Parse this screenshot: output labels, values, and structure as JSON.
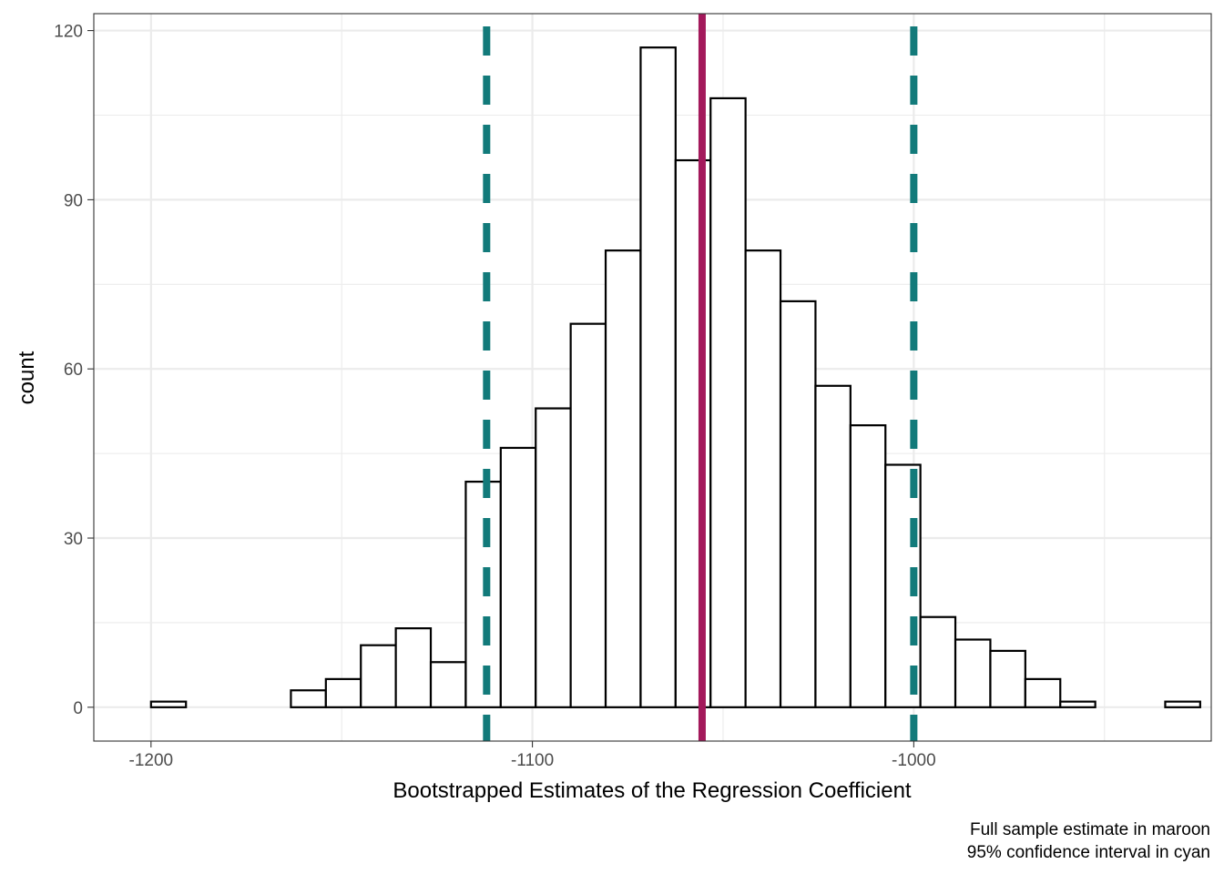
{
  "chart_data": {
    "type": "bar",
    "subtype": "histogram",
    "xlabel": "Bootstrapped Estimates of the Regression Coefficient",
    "ylabel": "count",
    "xlim": [
      -1215,
      -922
    ],
    "ylim": [
      -6,
      123
    ],
    "x_ticks": [
      -1200,
      -1100,
      -1000
    ],
    "x_tick_labels": [
      "-1200",
      "-1100",
      "-1000"
    ],
    "y_ticks": [
      0,
      30,
      60,
      90,
      120
    ],
    "y_tick_labels": [
      "0",
      "30",
      "60",
      "90",
      "120"
    ],
    "x_minor_gridlines": [
      -1150,
      -1050,
      -950
    ],
    "y_minor_gridlines": [
      15,
      45,
      75,
      105
    ],
    "bin_width": 9.17,
    "bins": [
      {
        "x0": -1200.0,
        "count": 1
      },
      {
        "x0": -1190.83,
        "count": 0
      },
      {
        "x0": -1181.66,
        "count": 0
      },
      {
        "x0": -1172.49,
        "count": 0
      },
      {
        "x0": -1163.32,
        "count": 3
      },
      {
        "x0": -1154.15,
        "count": 5
      },
      {
        "x0": -1144.98,
        "count": 11
      },
      {
        "x0": -1135.81,
        "count": 14
      },
      {
        "x0": -1126.64,
        "count": 8
      },
      {
        "x0": -1117.47,
        "count": 40
      },
      {
        "x0": -1108.3,
        "count": 46
      },
      {
        "x0": -1099.13,
        "count": 53
      },
      {
        "x0": -1089.96,
        "count": 68
      },
      {
        "x0": -1080.79,
        "count": 81
      },
      {
        "x0": -1071.62,
        "count": 117
      },
      {
        "x0": -1062.45,
        "count": 97
      },
      {
        "x0": -1053.28,
        "count": 108
      },
      {
        "x0": -1044.11,
        "count": 81
      },
      {
        "x0": -1034.94,
        "count": 72
      },
      {
        "x0": -1025.77,
        "count": 57
      },
      {
        "x0": -1016.6,
        "count": 50
      },
      {
        "x0": -1007.43,
        "count": 43
      },
      {
        "x0": -998.26,
        "count": 16
      },
      {
        "x0": -989.09,
        "count": 12
      },
      {
        "x0": -979.92,
        "count": 10
      },
      {
        "x0": -970.75,
        "count": 5
      },
      {
        "x0": -961.58,
        "count": 1
      },
      {
        "x0": -952.41,
        "count": 0
      },
      {
        "x0": -943.24,
        "count": 0
      },
      {
        "x0": -934.07,
        "count": 1
      }
    ],
    "reference_lines": [
      {
        "name": "full-sample-estimate",
        "x": -1055.5,
        "color": "#A3195B",
        "style": "solid"
      },
      {
        "name": "ci-lower",
        "x": -1112,
        "color": "#127A7A",
        "style": "dashed"
      },
      {
        "name": "ci-upper",
        "x": -1000,
        "color": "#127A7A",
        "style": "dashed"
      }
    ],
    "caption": [
      "Full sample estimate in maroon",
      "95% confidence interval in cyan"
    ]
  }
}
